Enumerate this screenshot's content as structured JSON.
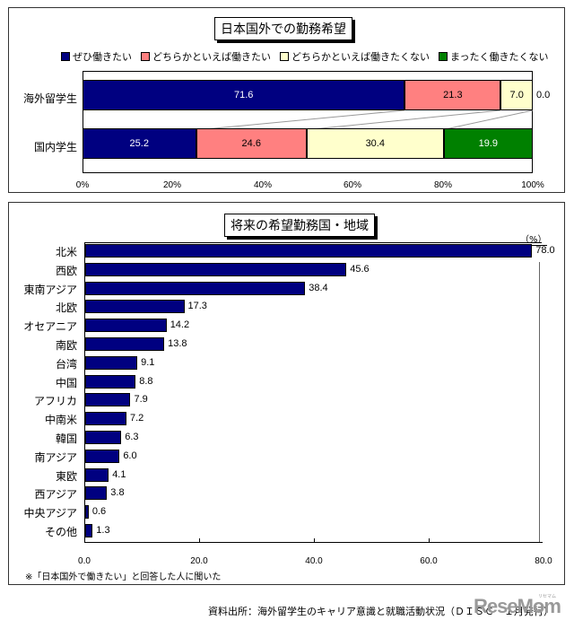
{
  "chart_data": [
    {
      "type": "bar",
      "orientation": "horizontal-stacked-100",
      "title": "日本国外での勤務希望",
      "categories": [
        "海外留学生",
        "国内学生"
      ],
      "series": [
        {
          "name": "ぜひ働きたい",
          "color": "#000080",
          "values": [
            71.6,
            25.2
          ]
        },
        {
          "name": "どちらかといえば働きたい",
          "color": "#ff8080",
          "values": [
            21.3,
            24.6
          ]
        },
        {
          "name": "どちらかといえば働きたくない",
          "color": "#ffffcc",
          "values": [
            7.0,
            30.4
          ]
        },
        {
          "name": "まったく働きたくない",
          "color": "#008000",
          "values": [
            0.0,
            19.9
          ]
        }
      ],
      "xticks": [
        "0%",
        "20%",
        "40%",
        "60%",
        "80%",
        "100%"
      ],
      "xlim": [
        0,
        100
      ],
      "legend_position": "top",
      "outside_label": "0.0"
    },
    {
      "type": "bar",
      "orientation": "horizontal",
      "title": "将来の希望勤務国・地域",
      "unit_label": "（%）",
      "categories": [
        "北米",
        "西欧",
        "東南アジア",
        "北欧",
        "オセアニア",
        "南欧",
        "台湾",
        "中国",
        "アフリカ",
        "中南米",
        "韓国",
        "南アジア",
        "東欧",
        "西アジア",
        "中央アジア",
        "その他"
      ],
      "values": [
        78.0,
        45.6,
        38.4,
        17.3,
        14.2,
        13.8,
        9.1,
        8.8,
        7.9,
        7.2,
        6.3,
        6.0,
        4.1,
        3.8,
        0.6,
        1.3
      ],
      "value_labels": [
        "78.0",
        "45.6",
        "38.4",
        "17.3",
        "14.2",
        "13.8",
        "9.1",
        "8.8",
        "7.9",
        "7.2",
        "6.3",
        "6.0",
        "4.1",
        "3.8",
        "0.6",
        "1.3"
      ],
      "color": "#000080",
      "xticks": [
        "0.0",
        "20.0",
        "40.0",
        "60.0",
        "80.0"
      ],
      "xlim": [
        0,
        80
      ],
      "note": "※「日本国外で働きたい」と回答した人に聞いた"
    }
  ],
  "top_chart": {
    "title": "日本国外での勤務希望",
    "legend": [
      "ぜひ働きたい",
      "どちらかといえば働きたい",
      "どちらかといえば働きたくない",
      "まったく働きたくない"
    ],
    "rows": [
      {
        "label": "海外留学生",
        "segments": [
          "71.6",
          "21.3",
          "7.0"
        ],
        "outside": "0.0"
      },
      {
        "label": "国内学生",
        "segments": [
          "25.2",
          "24.6",
          "30.4",
          "19.9"
        ]
      }
    ],
    "ticks": [
      "0%",
      "20%",
      "40%",
      "60%",
      "80%",
      "100%"
    ]
  },
  "bottom_chart": {
    "title": "将来の希望勤務国・地域",
    "unit": "（%）",
    "ticks": [
      "0.0",
      "20.0",
      "40.0",
      "60.0",
      "80.0"
    ],
    "note": "※「日本国外で働きたい」と回答した人に聞いた"
  },
  "footer": {
    "source": "資料出所：海外留学生のキャリア意識と就職活動状況（ＤＩＳＣ　１月発行）",
    "logo": "ReseMom",
    "logo_ruby": "リセマム"
  }
}
